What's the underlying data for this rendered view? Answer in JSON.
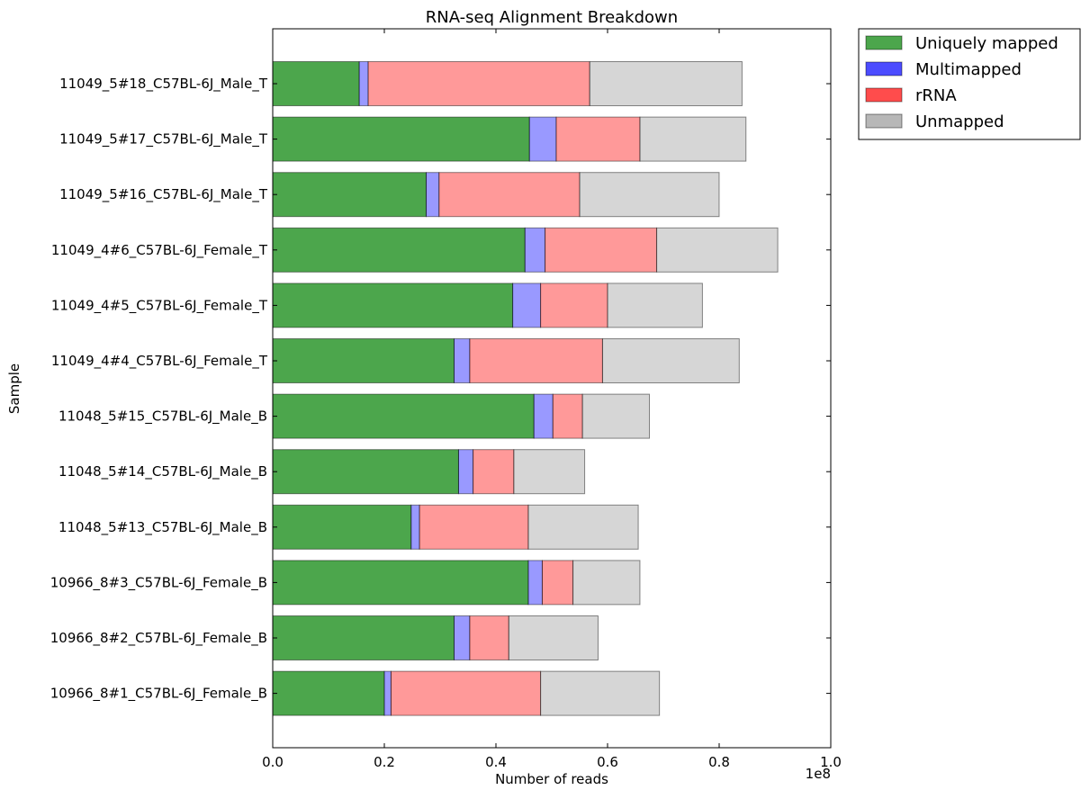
{
  "chart_data": {
    "type": "bar",
    "orientation": "horizontal",
    "stacked": true,
    "title": "RNA-seq Alignment Breakdown",
    "xlabel": "Number of reads",
    "ylabel": "Sample",
    "x_scale_label": "1e8",
    "xlim": [
      0,
      1.0
    ],
    "xticks": [
      "0.0",
      "0.2",
      "0.4",
      "0.6",
      "0.8",
      "1.0"
    ],
    "grid": false,
    "legend_position": "outside-top-right",
    "categories": [
      "11049_5#18_C57BL-6J_Male_T",
      "11049_5#17_C57BL-6J_Male_T",
      "11049_5#16_C57BL-6J_Male_T",
      "11049_4#6_C57BL-6J_Female_T",
      "11049_4#5_C57BL-6J_Female_T",
      "11049_4#4_C57BL-6J_Female_T",
      "11048_5#15_C57BL-6J_Male_B",
      "11048_5#14_C57BL-6J_Male_B",
      "11048_5#13_C57BL-6J_Male_B",
      "10966_8#3_C57BL-6J_Female_B",
      "10966_8#2_C57BL-6J_Female_B",
      "10966_8#1_C57BL-6J_Female_B"
    ],
    "series": [
      {
        "name": "Uniquely mapped",
        "color": "#008000",
        "values": [
          0.155,
          0.46,
          0.275,
          0.452,
          0.43,
          0.325,
          0.468,
          0.333,
          0.248,
          0.458,
          0.325,
          0.2
        ]
      },
      {
        "name": "Multimapped",
        "color": "#0000ff",
        "values": [
          0.016,
          0.048,
          0.023,
          0.036,
          0.05,
          0.028,
          0.034,
          0.026,
          0.015,
          0.025,
          0.028,
          0.012
        ]
      },
      {
        "name": "rRNA",
        "color": "#ff0000",
        "values": [
          0.397,
          0.15,
          0.252,
          0.2,
          0.12,
          0.238,
          0.053,
          0.073,
          0.195,
          0.055,
          0.07,
          0.268
        ]
      },
      {
        "name": "Unmapped",
        "color": "#999999",
        "values": [
          0.273,
          0.19,
          0.25,
          0.217,
          0.17,
          0.245,
          0.12,
          0.127,
          0.197,
          0.12,
          0.16,
          0.213
        ]
      }
    ]
  }
}
